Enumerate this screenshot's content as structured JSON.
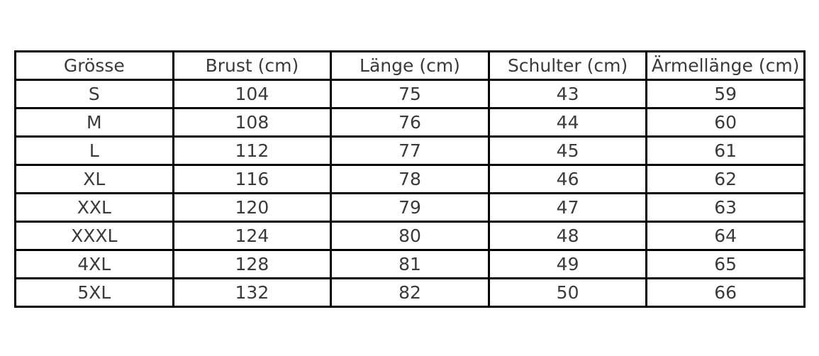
{
  "colors": {
    "border": "#000000",
    "text": "#3a3a3a",
    "background": "#ffffff"
  },
  "table": {
    "headers": [
      "Grösse",
      "Brust (cm)",
      "Länge (cm)",
      "Schulter (cm)",
      "Ärmellänge (cm)"
    ],
    "rows": [
      [
        "S",
        "104",
        "75",
        "43",
        "59"
      ],
      [
        "M",
        "108",
        "76",
        "44",
        "60"
      ],
      [
        "L",
        "112",
        "77",
        "45",
        "61"
      ],
      [
        "XL",
        "116",
        "78",
        "46",
        "62"
      ],
      [
        "XXL",
        "120",
        "79",
        "47",
        "63"
      ],
      [
        "XXXL",
        "124",
        "80",
        "48",
        "64"
      ],
      [
        "4XL",
        "128",
        "81",
        "49",
        "65"
      ],
      [
        "5XL",
        "132",
        "82",
        "50",
        "66"
      ]
    ]
  },
  "chart_data": {
    "type": "table",
    "columns": [
      "Grösse",
      "Brust (cm)",
      "Länge (cm)",
      "Schulter (cm)",
      "Ärmellänge (cm)"
    ],
    "rows": [
      [
        "S",
        104,
        75,
        43,
        59
      ],
      [
        "M",
        108,
        76,
        44,
        60
      ],
      [
        "L",
        112,
        77,
        45,
        61
      ],
      [
        "XL",
        116,
        78,
        46,
        62
      ],
      [
        "XXL",
        120,
        79,
        47,
        63
      ],
      [
        "XXXL",
        124,
        80,
        48,
        64
      ],
      [
        "4XL",
        128,
        81,
        49,
        65
      ],
      [
        "5XL",
        132,
        82,
        50,
        66
      ]
    ]
  }
}
